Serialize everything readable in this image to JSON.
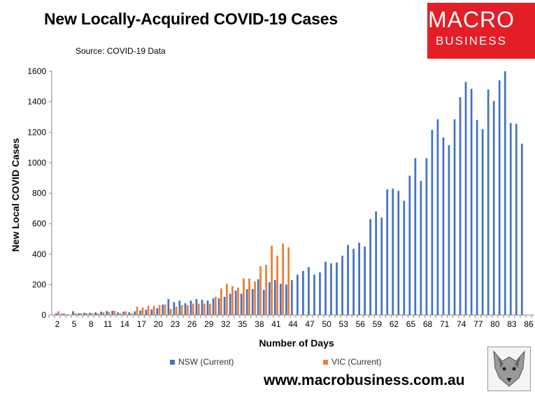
{
  "header": {
    "title": "New Locally-Acquired COVID-19 Cases",
    "source": "Source: COVID-19 Data"
  },
  "logo": {
    "line1": "MACRO",
    "line2": "BUSINESS",
    "bg_color": "#e41e26"
  },
  "footer": {
    "url": "www.macrobusiness.com.au"
  },
  "chart_data": {
    "type": "bar",
    "title": "New Locally-Acquired COVID-19 Cases",
    "xlabel": "Number of Days",
    "ylabel": "New Local COVID Cases",
    "ylim": [
      0,
      1600
    ],
    "yticks": [
      0,
      200,
      400,
      600,
      800,
      1000,
      1200,
      1400,
      1600
    ],
    "xlim": [
      1,
      87
    ],
    "xticks": [
      2,
      5,
      8,
      11,
      14,
      17,
      20,
      23,
      26,
      29,
      32,
      35,
      38,
      41,
      44,
      47,
      50,
      53,
      56,
      59,
      62,
      65,
      68,
      71,
      74,
      77,
      80,
      83,
      86
    ],
    "legend_position": "bottom",
    "series": [
      {
        "name": "NSW (Current)",
        "color": "#4472c4",
        "start_day": 2,
        "values": [
          12,
          8,
          5,
          25,
          12,
          15,
          15,
          18,
          22,
          26,
          28,
          18,
          22,
          18,
          24,
          30,
          35,
          38,
          45,
          68,
          105,
          85,
          95,
          78,
          95,
          105,
          100,
          95,
          110,
          110,
          120,
          140,
          160,
          140,
          170,
          170,
          235,
          165,
          215,
          230,
          205,
          200,
          230,
          265,
          290,
          315,
          265,
          280,
          350,
          340,
          345,
          390,
          460,
          435,
          475,
          450,
          630,
          680,
          640,
          825,
          830,
          815,
          750,
          915,
          1030,
          880,
          1030,
          1215,
          1285,
          1165,
          1115,
          1285,
          1430,
          1530,
          1485,
          1280,
          1220,
          1480,
          1405,
          1540,
          1600,
          1260,
          1255,
          1125
        ]
      },
      {
        "name": "VIC (Current)",
        "color": "#ed7d31",
        "start_day": 2,
        "values": [
          25,
          12,
          0,
          12,
          12,
          12,
          12,
          12,
          18,
          22,
          28,
          12,
          25,
          12,
          55,
          50,
          60,
          60,
          65,
          70,
          40,
          55,
          65,
          65,
          75,
          75,
          75,
          75,
          120,
          175,
          205,
          190,
          180,
          240,
          240,
          220,
          320,
          330,
          455,
          390,
          470,
          445
        ]
      }
    ]
  }
}
